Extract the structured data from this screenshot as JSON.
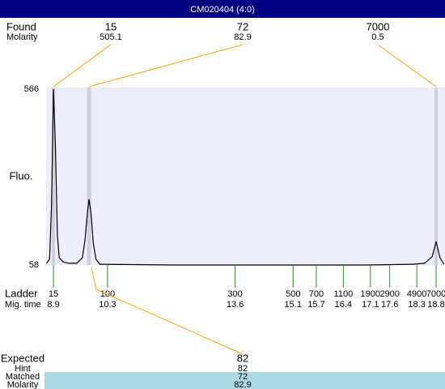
{
  "header": {
    "title": "CM020404 (4:0)"
  },
  "chart_data": {
    "type": "line",
    "y_label": "Fluo.",
    "x": [
      8.72,
      8.8,
      8.85,
      8.9,
      8.95,
      9.0,
      9.05,
      9.15,
      9.3,
      9.5,
      9.65,
      9.72,
      9.78,
      9.82,
      9.87,
      9.93,
      10.0,
      10.1,
      12.0,
      15.0,
      17.0,
      18.2,
      18.5,
      18.7,
      18.8,
      18.9,
      19.0
    ],
    "values": [
      63,
      75,
      230,
      566,
      400,
      145,
      79,
      67,
      63,
      63,
      79,
      133,
      210,
      248,
      210,
      121,
      75,
      60,
      58,
      58,
      58,
      60,
      63,
      82,
      126,
      79,
      60
    ],
    "color": "#000000",
    "xlim": [
      8.71,
      19.03
    ],
    "ylim": [
      58,
      566
    ],
    "yticks": [
      58,
      566
    ],
    "found": {
      "label": "Found",
      "molarity_label": "Molarity",
      "sizes": [
        15,
        72,
        7000
      ],
      "molarity": [
        505.1,
        82.9,
        0.5
      ],
      "times": [
        8.9,
        9.82,
        18.8
      ]
    },
    "ladder": {
      "label": "Ladder",
      "time_label": "Mig. time",
      "sizes": [
        15,
        100,
        300,
        500,
        700,
        1100,
        1900,
        2900,
        4900,
        7000
      ],
      "times": [
        8.9,
        10.3,
        13.6,
        15.1,
        15.7,
        16.4,
        17.1,
        17.6,
        18.3,
        18.8
      ]
    },
    "expected": {
      "label": "Expected",
      "hint_label": "Hint",
      "matched_label": "Matched",
      "molarity_label": "Molarity",
      "size": 82,
      "hint": 82,
      "matched": 72,
      "molarity": 82.9,
      "time": 9.88
    }
  }
}
